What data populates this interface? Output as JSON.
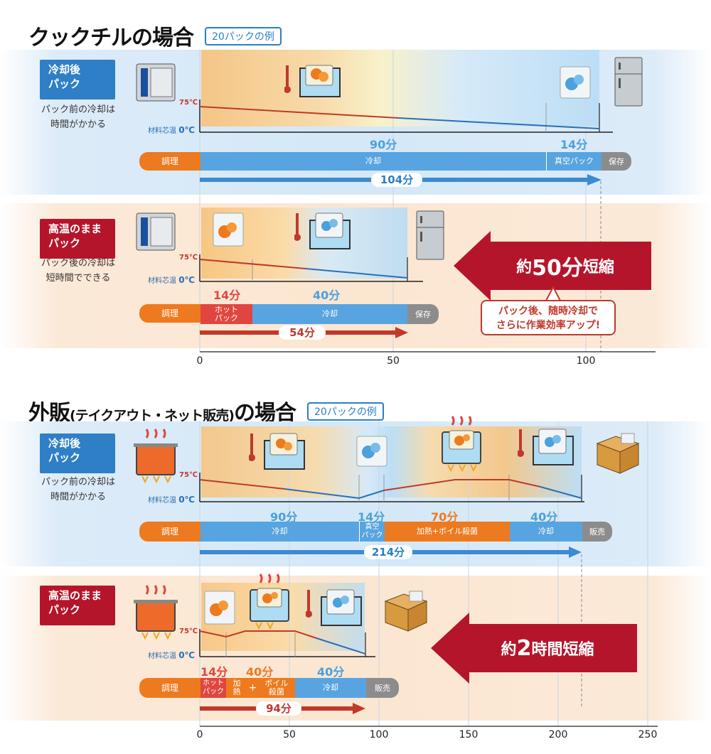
{
  "section1": {
    "title": "クックチルの場合",
    "tag": "20パックの例",
    "row1": {
      "label": "冷却後\nパック",
      "desc": "パック前の冷却は\n時間がかかる",
      "temp_high": "75℃",
      "temp_low_label": "材料芯温",
      "temp_low": "0℃",
      "mins": [
        "90分",
        "14分"
      ],
      "cook": "調理",
      "segments": [
        "冷却",
        "真空パック"
      ],
      "store": "保存",
      "total": "104分"
    },
    "row2": {
      "label": "高温のまま\nパック",
      "desc": "パック後の冷却は\n短時間でできる",
      "temp_high": "75℃",
      "temp_low_label": "材料芯温",
      "temp_low": "0℃",
      "mins": [
        "14分",
        "40分"
      ],
      "cook": "調理",
      "segments": [
        "ホット\nパック",
        "冷却"
      ],
      "store": "保存",
      "total": "54分"
    },
    "reduction": {
      "prefix": "約",
      "value": "50分",
      "suffix": "短縮"
    },
    "callout": "パック後、随時冷却で\nさらに作業効率アップ!",
    "axis": [
      "0",
      "50",
      "100"
    ]
  },
  "section2": {
    "title_main": "外販",
    "title_paren": "(テイクアウト・ネット販売)",
    "title_tail": "の場合",
    "tag": "20パックの例",
    "row1": {
      "label": "冷却後\nパック",
      "desc": "パック前の冷却は\n時間がかかる",
      "temp_high": "75℃",
      "temp_low_label": "材料芯温",
      "temp_low": "0℃",
      "mins": [
        "90分",
        "14分",
        "70分",
        "40分"
      ],
      "cook": "調理",
      "segments": [
        "冷却",
        "真空\nパック",
        "加熱+ボイル殺菌",
        "冷却"
      ],
      "store": "販売",
      "total": "214分"
    },
    "row2": {
      "label": "高温のまま\nパック",
      "temp_high": "75℃",
      "temp_low_label": "材料芯温",
      "temp_low": "0℃",
      "mins": [
        "14分",
        "40分",
        "40分"
      ],
      "cook": "調理",
      "segments": [
        "ホット\nパック",
        "加\n熱",
        "+",
        "ボイル\n殺菌",
        "冷却"
      ],
      "store": "販売",
      "total": "94分"
    },
    "reduction": {
      "prefix": "約",
      "value": "2",
      "suffix": "時間短縮"
    },
    "axis": [
      "0",
      "50",
      "100",
      "150",
      "200",
      "250"
    ]
  },
  "icons": [
    "oven-icon",
    "fridge-icon",
    "ice-bath-icon",
    "pack-icon",
    "pot-icon",
    "box-icon",
    "thermometer-icon"
  ],
  "colors": {
    "blue": "#2f7fc7",
    "red": "#b5152b",
    "orange": "#ed7a1e",
    "gray": "#8c8c8c",
    "light_blue": "#58a4e0"
  }
}
